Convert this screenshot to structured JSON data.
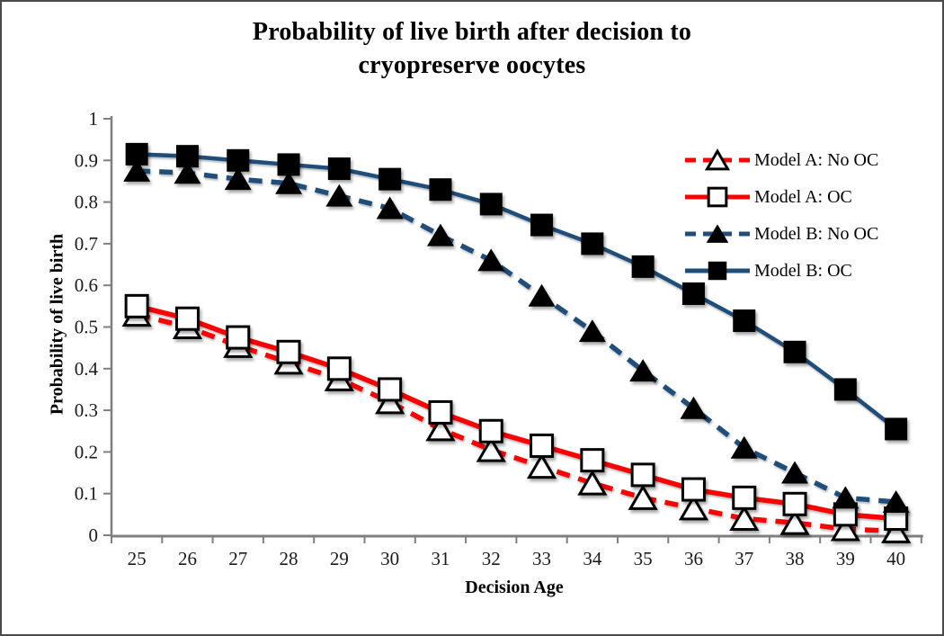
{
  "chart_data": {
    "type": "line",
    "title": "Probability of live birth after decision to cryopreserve oocytes",
    "title_lines": [
      "Probability of live birth after decision to",
      "cryopreserve oocytes"
    ],
    "xlabel": "Decision Age",
    "ylabel": "Probability of live birth",
    "x": [
      25,
      26,
      27,
      28,
      29,
      30,
      31,
      32,
      33,
      34,
      35,
      36,
      37,
      38,
      39,
      40
    ],
    "x_tick_labels": [
      "25",
      "26",
      "27",
      "28",
      "29",
      "30",
      "31",
      "32",
      "33",
      "34",
      "35",
      "36",
      "37",
      "38",
      "39",
      "40"
    ],
    "y_tick_labels": [
      "1",
      "0.9",
      "0.8",
      "0.7",
      "0.6",
      "0.5",
      "0.4",
      "0.3",
      "0.2",
      "0.1",
      "0"
    ],
    "ylim": [
      0,
      1
    ],
    "grid": false,
    "legend_position": "inside-right",
    "colors": {
      "model_a": "#FE0000",
      "model_b": "#1F4E7B",
      "marker_filled": "#000000",
      "marker_open_fill": "#FFFFFF",
      "marker_stroke": "#000000",
      "axis": "#7F7F7F",
      "tick_text": "#1A1A1A"
    },
    "series": [
      {
        "name": "Model A: No OC",
        "color_key": "model_a",
        "line": "dashed",
        "marker": "triangle-open",
        "values": [
          0.53,
          0.5,
          0.455,
          0.415,
          0.375,
          0.32,
          0.255,
          0.205,
          0.165,
          0.125,
          0.09,
          0.065,
          0.04,
          0.03,
          0.015,
          0.01
        ]
      },
      {
        "name": "Model A: OC",
        "color_key": "model_a",
        "line": "solid",
        "marker": "square-open",
        "values": [
          0.55,
          0.52,
          0.475,
          0.44,
          0.4,
          0.35,
          0.295,
          0.25,
          0.215,
          0.18,
          0.145,
          0.11,
          0.09,
          0.075,
          0.05,
          0.04
        ]
      },
      {
        "name": "Model B: No OC",
        "color_key": "model_b",
        "line": "dashed",
        "marker": "triangle-filled",
        "values": [
          0.875,
          0.87,
          0.855,
          0.845,
          0.815,
          0.785,
          0.72,
          0.66,
          0.575,
          0.49,
          0.395,
          0.305,
          0.21,
          0.15,
          0.09,
          0.08
        ]
      },
      {
        "name": "Model B: OC",
        "color_key": "model_b",
        "line": "solid",
        "marker": "square-filled",
        "values": [
          0.915,
          0.91,
          0.9,
          0.89,
          0.88,
          0.855,
          0.83,
          0.795,
          0.745,
          0.7,
          0.645,
          0.58,
          0.515,
          0.44,
          0.35,
          0.255
        ]
      }
    ]
  }
}
